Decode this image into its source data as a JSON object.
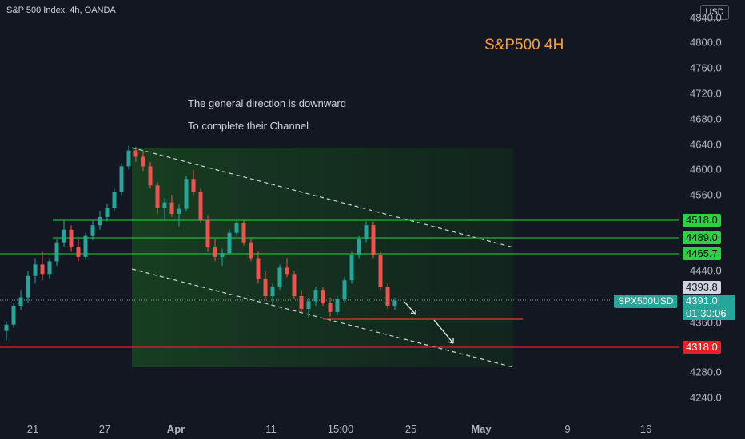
{
  "header": {
    "symbol": "S&P 500 Index, 4h, OANDA",
    "currency": "USD"
  },
  "title": "S&P500 4H",
  "notes": {
    "line1": "The general direction is downward",
    "line2": "To complete their Channel"
  },
  "y_ticks": [
    "4840.0",
    "4800.0",
    "4760.0",
    "4720.0",
    "4680.0",
    "4640.0",
    "4600.0",
    "4560.0",
    "4440.0",
    "4360.0",
    "4280.0",
    "4240.0"
  ],
  "x_ticks": [
    "21",
    "27",
    "Apr",
    "11",
    "15:00",
    "25",
    "May",
    "9",
    "16"
  ],
  "levels": {
    "l1": "4518.0",
    "l2": "4489.0",
    "l3": "4465.7",
    "gray": "4393.8",
    "price": "4391.0",
    "countdown": "01:30:06",
    "red": "4318.0",
    "symbol_tag": "SPX500USD"
  },
  "colors": {
    "up": "#26a69a",
    "down": "#ef5350",
    "green_line": "#2ad33f",
    "red_line": "#e91e26",
    "title": "#f7a03a",
    "channel": "#1b5e20"
  },
  "chart_data": {
    "type": "candlestick",
    "ylim": [
      4220,
      4860
    ],
    "x": [
      "21",
      "27",
      "Apr",
      "11",
      "15:00",
      "25",
      "May",
      "9",
      "16"
    ],
    "ohlc": [
      [
        4345,
        4360,
        4330,
        4355
      ],
      [
        4355,
        4390,
        4350,
        4385
      ],
      [
        4385,
        4410,
        4378,
        4398
      ],
      [
        4398,
        4440,
        4390,
        4432
      ],
      [
        4432,
        4460,
        4420,
        4450
      ],
      [
        4450,
        4470,
        4425,
        4435
      ],
      [
        4435,
        4460,
        4428,
        4455
      ],
      [
        4455,
        4490,
        4448,
        4485
      ],
      [
        4485,
        4520,
        4478,
        4505
      ],
      [
        4505,
        4512,
        4470,
        4478
      ],
      [
        4478,
        4490,
        4455,
        4462
      ],
      [
        4462,
        4500,
        4458,
        4495
      ],
      [
        4495,
        4520,
        4488,
        4512
      ],
      [
        4512,
        4535,
        4505,
        4525
      ],
      [
        4525,
        4545,
        4518,
        4540
      ],
      [
        4540,
        4570,
        4535,
        4565
      ],
      [
        4565,
        4610,
        4560,
        4605
      ],
      [
        4605,
        4638,
        4600,
        4630
      ],
      [
        4630,
        4636,
        4612,
        4620
      ],
      [
        4620,
        4630,
        4598,
        4605
      ],
      [
        4605,
        4612,
        4570,
        4575
      ],
      [
        4575,
        4580,
        4530,
        4540
      ],
      [
        4540,
        4555,
        4520,
        4548
      ],
      [
        4548,
        4560,
        4525,
        4530
      ],
      [
        4530,
        4545,
        4510,
        4538
      ],
      [
        4538,
        4590,
        4535,
        4585
      ],
      [
        4585,
        4600,
        4560,
        4565
      ],
      [
        4565,
        4570,
        4515,
        4520
      ],
      [
        4520,
        4528,
        4470,
        4478
      ],
      [
        4478,
        4490,
        4455,
        4462
      ],
      [
        4462,
        4475,
        4448,
        4468
      ],
      [
        4468,
        4505,
        4465,
        4500
      ],
      [
        4500,
        4520,
        4495,
        4515
      ],
      [
        4515,
        4520,
        4480,
        4485
      ],
      [
        4485,
        4490,
        4455,
        4460
      ],
      [
        4460,
        4470,
        4420,
        4428
      ],
      [
        4428,
        4440,
        4395,
        4400
      ],
      [
        4400,
        4420,
        4388,
        4415
      ],
      [
        4415,
        4450,
        4410,
        4445
      ],
      [
        4445,
        4460,
        4430,
        4435
      ],
      [
        4435,
        4440,
        4395,
        4400
      ],
      [
        4400,
        4410,
        4375,
        4380
      ],
      [
        4380,
        4398,
        4365,
        4392
      ],
      [
        4392,
        4415,
        4385,
        4410
      ],
      [
        4410,
        4415,
        4385,
        4390
      ],
      [
        4390,
        4398,
        4368,
        4375
      ],
      [
        4375,
        4400,
        4370,
        4395
      ],
      [
        4395,
        4430,
        4390,
        4425
      ],
      [
        4425,
        4470,
        4420,
        4465
      ],
      [
        4465,
        4495,
        4460,
        4490
      ],
      [
        4490,
        4518,
        4485,
        4512
      ],
      [
        4512,
        4518,
        4460,
        4465
      ],
      [
        4465,
        4470,
        4410,
        4415
      ],
      [
        4415,
        4420,
        4380,
        4385
      ],
      [
        4385,
        4398,
        4378,
        4393
      ]
    ]
  }
}
